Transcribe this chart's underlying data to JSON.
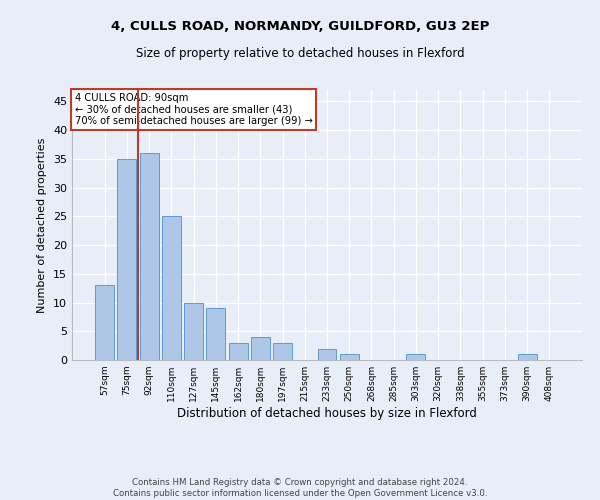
{
  "title1": "4, CULLS ROAD, NORMANDY, GUILDFORD, GU3 2EP",
  "title2": "Size of property relative to detached houses in Flexford",
  "xlabel": "Distribution of detached houses by size in Flexford",
  "ylabel": "Number of detached properties",
  "categories": [
    "57sqm",
    "75sqm",
    "92sqm",
    "110sqm",
    "127sqm",
    "145sqm",
    "162sqm",
    "180sqm",
    "197sqm",
    "215sqm",
    "233sqm",
    "250sqm",
    "268sqm",
    "285sqm",
    "303sqm",
    "320sqm",
    "338sqm",
    "355sqm",
    "373sqm",
    "390sqm",
    "408sqm"
  ],
  "values": [
    13,
    35,
    36,
    25,
    10,
    9,
    3,
    4,
    3,
    0,
    2,
    1,
    0,
    0,
    1,
    0,
    0,
    0,
    0,
    1,
    0
  ],
  "bar_color": "#aec6e8",
  "bar_edge_color": "#5b9bd5",
  "ylim": [
    0,
    47
  ],
  "yticks": [
    0,
    5,
    10,
    15,
    20,
    25,
    30,
    35,
    40,
    45
  ],
  "property_bar_index": 2,
  "vline_color": "#c0392b",
  "annotation_box_color": "#c0392b",
  "annotation_text": "4 CULLS ROAD: 90sqm\n← 30% of detached houses are smaller (43)\n70% of semi-detached houses are larger (99) →",
  "footer_text": "Contains HM Land Registry data © Crown copyright and database right 2024.\nContains public sector information licensed under the Open Government Licence v3.0.",
  "background_color": "#e8eef7"
}
